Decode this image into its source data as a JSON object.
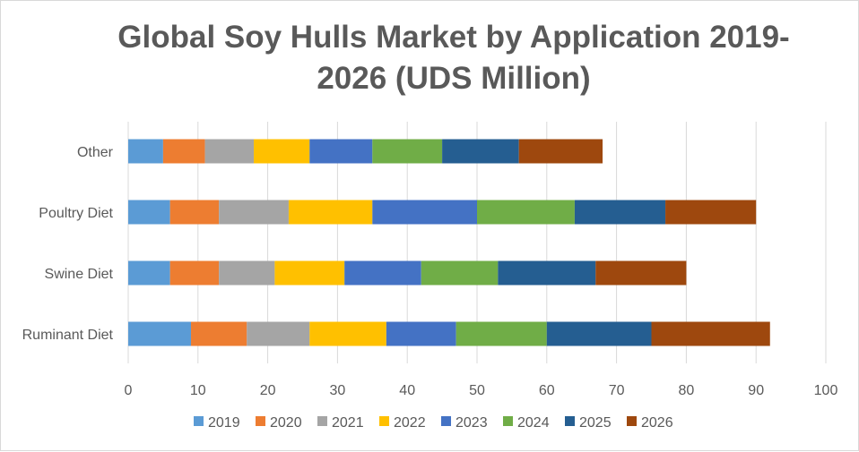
{
  "chart_data": {
    "type": "bar",
    "orientation": "horizontal",
    "stacked": true,
    "title_line1": "Global  Soy Hulls Market by Application 2019-",
    "title_line2": "2026 (UDS Million)",
    "categories": [
      "Other",
      "Poultry Diet",
      "Swine Diet",
      "Ruminant Diet"
    ],
    "series": [
      {
        "name": "2019",
        "color": "#5b9bd5",
        "values": [
          5,
          6,
          6,
          9
        ]
      },
      {
        "name": "2020",
        "color": "#ed7d31",
        "values": [
          6,
          7,
          7,
          8
        ]
      },
      {
        "name": "2021",
        "color": "#a5a5a5",
        "values": [
          7,
          10,
          8,
          9
        ]
      },
      {
        "name": "2022",
        "color": "#ffc000",
        "values": [
          8,
          12,
          10,
          11
        ]
      },
      {
        "name": "2023",
        "color": "#4472c4",
        "values": [
          9,
          15,
          11,
          10
        ]
      },
      {
        "name": "2024",
        "color": "#70ad47",
        "values": [
          10,
          14,
          11,
          13
        ]
      },
      {
        "name": "2025",
        "color": "#255e91",
        "values": [
          11,
          13,
          14,
          15
        ]
      },
      {
        "name": "2026",
        "color": "#9e480e",
        "values": [
          12,
          13,
          13,
          17
        ]
      }
    ],
    "xlim": [
      0,
      100
    ],
    "xticks": [
      "0",
      "10",
      "20",
      "30",
      "40",
      "50",
      "60",
      "70",
      "80",
      "90",
      "100"
    ],
    "grid": true,
    "legend": "bottom"
  }
}
